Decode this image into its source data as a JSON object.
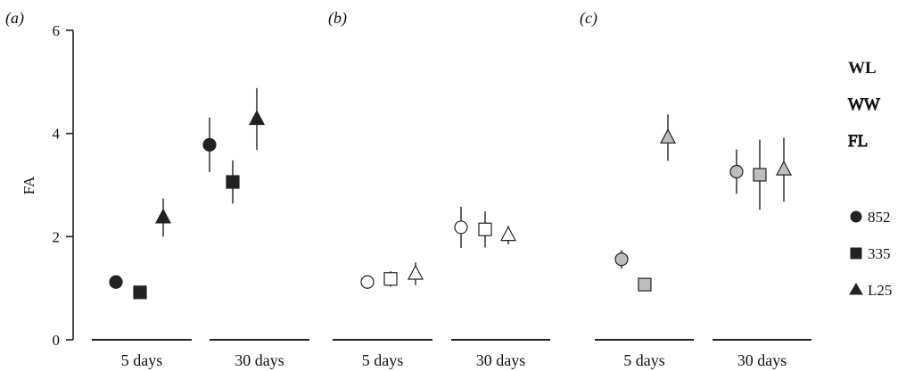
{
  "chart_data": {
    "type": "scatter",
    "ylabel": "FA",
    "ylim": [
      0,
      6
    ],
    "yticks": [
      "0",
      "2",
      "4",
      "6"
    ],
    "panels": [
      {
        "label": "(a)",
        "fill": "#222222",
        "groups": [
          {
            "label": "5 days",
            "points": [
              {
                "series": "852",
                "marker": "circle",
                "y": 1.12,
                "err": 0.0
              },
              {
                "series": "335",
                "marker": "square",
                "y": 0.92,
                "err": 0.0
              },
              {
                "series": "L25",
                "marker": "triangle",
                "y": 2.37,
                "err": 0.37
              }
            ]
          },
          {
            "label": "30 days",
            "points": [
              {
                "series": "852",
                "marker": "circle",
                "y": 3.78,
                "err": 0.53
              },
              {
                "series": "335",
                "marker": "square",
                "y": 3.06,
                "err": 0.42
              },
              {
                "series": "L25",
                "marker": "triangle",
                "y": 4.28,
                "err": 0.6
              }
            ]
          }
        ]
      },
      {
        "label": "(b)",
        "fill": "#ffffff",
        "groups": [
          {
            "label": "5 days",
            "points": [
              {
                "series": "852",
                "marker": "circle",
                "y": 1.12,
                "err": 0.12
              },
              {
                "series": "335",
                "marker": "square",
                "y": 1.18,
                "err": 0.15
              },
              {
                "series": "L25",
                "marker": "triangle",
                "y": 1.28,
                "err": 0.22
              }
            ]
          },
          {
            "label": "30 days",
            "points": [
              {
                "series": "852",
                "marker": "circle",
                "y": 2.18,
                "err": 0.4
              },
              {
                "series": "335",
                "marker": "square",
                "y": 2.14,
                "err": 0.35
              },
              {
                "series": "L25",
                "marker": "triangle",
                "y": 2.03,
                "err": 0.18
              }
            ]
          }
        ]
      },
      {
        "label": "(c)",
        "fill": "#bdbdbd",
        "groups": [
          {
            "label": "5 days",
            "points": [
              {
                "series": "852",
                "marker": "circle",
                "y": 1.56,
                "err": 0.18
              },
              {
                "series": "335",
                "marker": "square",
                "y": 1.07,
                "err": 0.0
              },
              {
                "series": "L25",
                "marker": "triangle",
                "y": 3.92,
                "err": 0.45
              }
            ]
          },
          {
            "label": "30 days",
            "points": [
              {
                "series": "852",
                "marker": "circle",
                "y": 3.26,
                "err": 0.43
              },
              {
                "series": "335",
                "marker": "square",
                "y": 3.2,
                "err": 0.68
              },
              {
                "series": "L25",
                "marker": "triangle",
                "y": 3.3,
                "err": 0.62
              }
            ]
          }
        ]
      }
    ],
    "legend_groups": [
      "WL",
      "WW",
      "FL"
    ],
    "legend_series": [
      {
        "name": "852",
        "marker": "circle"
      },
      {
        "name": "335",
        "marker": "square"
      },
      {
        "name": "L25",
        "marker": "triangle"
      }
    ]
  }
}
